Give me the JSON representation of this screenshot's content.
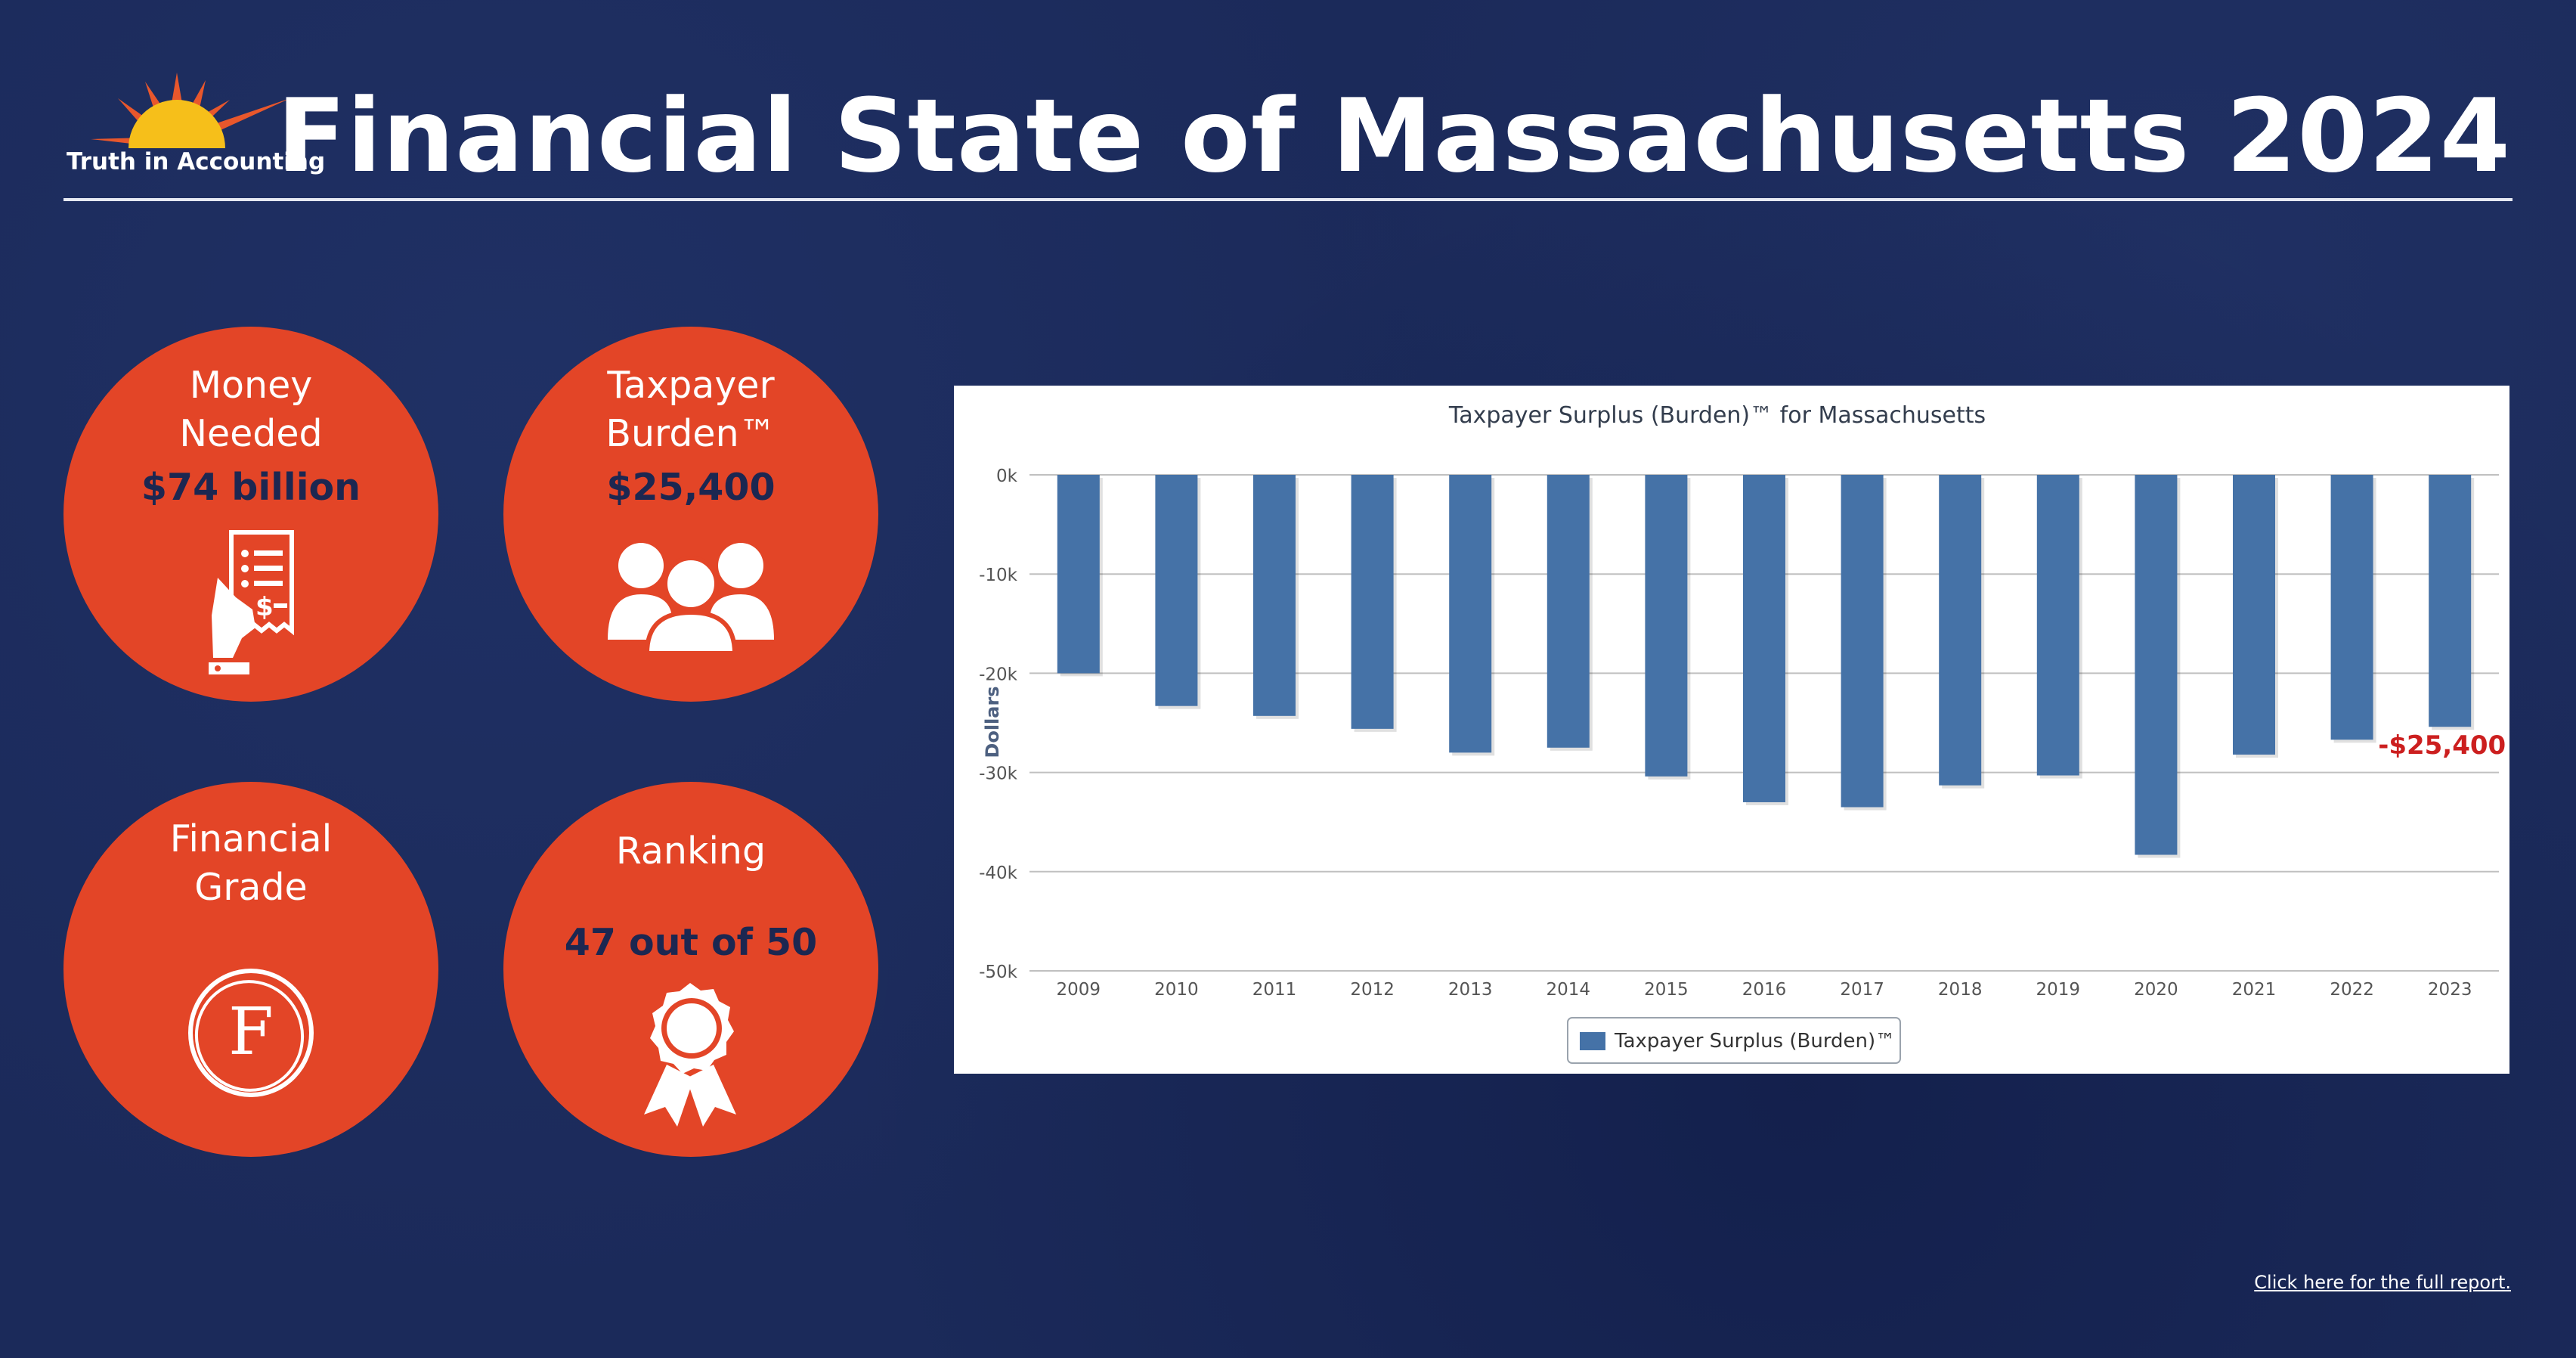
{
  "brand": {
    "logo_text": "Truth in Accounting",
    "sun_color": "#f6bf1a",
    "ray_color": "#e8572c"
  },
  "header": {
    "title": "Financial State of Massachusetts 2024"
  },
  "stats": {
    "money": {
      "label_1": "Money",
      "label_2": "Needed",
      "value": "$74 billion",
      "icon": "receipt-hand-icon"
    },
    "burden": {
      "label_1": "Taxpayer",
      "label_2": "Burden™",
      "value": "$25,400",
      "icon": "people-icon"
    },
    "grade": {
      "label_1": "Financial",
      "label_2": "Grade",
      "value": "F",
      "icon": "circled-letter-icon"
    },
    "ranking": {
      "label_1": "Ranking",
      "value": "47 out of 50",
      "icon": "award-ribbon-icon"
    }
  },
  "colors": {
    "circle": "#e34527",
    "navy": "#1c2751",
    "bar": "#4572a7",
    "annotation": "#cc1f1f"
  },
  "chart_data": {
    "type": "bar",
    "title": "Taxpayer Surplus (Burden)™ for Massachusetts",
    "ylabel": "Dollars",
    "xlabel": "",
    "ylim": [
      -50000,
      0
    ],
    "yticks": [
      0,
      -10000,
      -20000,
      -30000,
      -40000,
      -50000
    ],
    "ytick_labels": [
      "0k",
      "-10k",
      "-20k",
      "-30k",
      "-40k",
      "-50k"
    ],
    "grid": true,
    "legend_position": "bottom-center",
    "categories": [
      "2009",
      "2010",
      "2011",
      "2012",
      "2013",
      "2014",
      "2015",
      "2016",
      "2017",
      "2018",
      "2019",
      "2020",
      "2021",
      "2022",
      "2023"
    ],
    "series": [
      {
        "name": "Taxpayer Surplus (Burden)™",
        "color": "#4572a7",
        "values": [
          -20000,
          -23300,
          -24300,
          -25600,
          -28000,
          -27500,
          -30400,
          -33000,
          -33500,
          -31300,
          -30300,
          -38300,
          -28200,
          -26700,
          -25400
        ]
      }
    ],
    "annotation": {
      "category": "2023",
      "text": "-$25,400"
    }
  },
  "footer": {
    "report_link": "Click here for the full report."
  }
}
